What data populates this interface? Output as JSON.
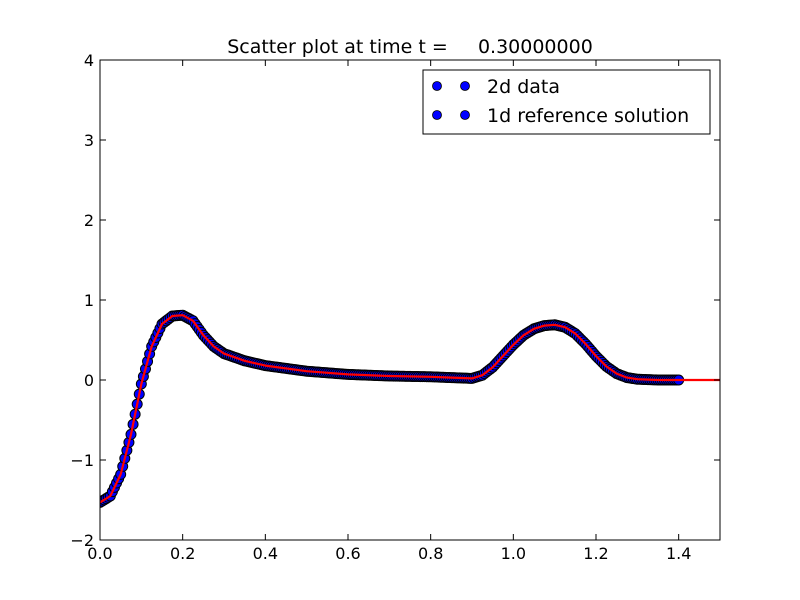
{
  "chart_data": {
    "type": "scatter",
    "title": "Scatter plot at time t =     0.30000000",
    "xlabel": "",
    "ylabel": "",
    "xlim": [
      0.0,
      1.5
    ],
    "ylim": [
      -2,
      4
    ],
    "grid": false,
    "legend_position": "top-right",
    "x_ticks": [
      "0.0",
      "0.2",
      "0.4",
      "0.6",
      "0.8",
      "1.0",
      "1.2",
      "1.4"
    ],
    "y_ticks": [
      "−2",
      "−1",
      "0",
      "1",
      "2",
      "3",
      "4"
    ],
    "series": [
      {
        "name": "2d data",
        "kind": "scatter",
        "color": "#0000ff",
        "edge_color": "#000000",
        "x": [
          0.0,
          0.025,
          0.05,
          0.075,
          0.1,
          0.125,
          0.15,
          0.175,
          0.2,
          0.225,
          0.25,
          0.275,
          0.3,
          0.35,
          0.4,
          0.5,
          0.6,
          0.7,
          0.8,
          0.85,
          0.9,
          0.925,
          0.95,
          0.975,
          1.0,
          1.025,
          1.05,
          1.075,
          1.1,
          1.125,
          1.15,
          1.175,
          1.2,
          1.225,
          1.25,
          1.275,
          1.3,
          1.35,
          1.4
        ],
        "y": [
          -1.53,
          -1.45,
          -1.18,
          -0.68,
          -0.05,
          0.42,
          0.7,
          0.8,
          0.81,
          0.74,
          0.56,
          0.42,
          0.33,
          0.24,
          0.18,
          0.11,
          0.07,
          0.05,
          0.04,
          0.03,
          0.02,
          0.06,
          0.16,
          0.3,
          0.44,
          0.56,
          0.64,
          0.68,
          0.69,
          0.66,
          0.58,
          0.45,
          0.3,
          0.17,
          0.08,
          0.03,
          0.01,
          0.0,
          0.0
        ]
      },
      {
        "name": "1d reference solution",
        "kind": "line",
        "color": "#ff0000",
        "x": [
          0.0,
          0.025,
          0.05,
          0.075,
          0.1,
          0.125,
          0.15,
          0.175,
          0.2,
          0.225,
          0.25,
          0.275,
          0.3,
          0.35,
          0.4,
          0.5,
          0.6,
          0.7,
          0.8,
          0.85,
          0.9,
          0.925,
          0.95,
          0.975,
          1.0,
          1.025,
          1.05,
          1.075,
          1.1,
          1.125,
          1.15,
          1.175,
          1.2,
          1.225,
          1.25,
          1.275,
          1.3,
          1.35,
          1.4,
          1.45,
          1.5
        ],
        "y": [
          -1.53,
          -1.45,
          -1.18,
          -0.68,
          -0.05,
          0.42,
          0.7,
          0.8,
          0.81,
          0.74,
          0.56,
          0.42,
          0.33,
          0.24,
          0.18,
          0.11,
          0.07,
          0.05,
          0.04,
          0.03,
          0.02,
          0.06,
          0.16,
          0.3,
          0.44,
          0.56,
          0.64,
          0.68,
          0.69,
          0.66,
          0.58,
          0.45,
          0.3,
          0.17,
          0.08,
          0.03,
          0.01,
          0.0,
          0.0,
          0.0,
          0.0
        ]
      }
    ],
    "legend": [
      {
        "label": "2d data",
        "marker_color": "#0000ff"
      },
      {
        "label": "1d reference solution",
        "marker_color": "#0000ff"
      }
    ]
  }
}
